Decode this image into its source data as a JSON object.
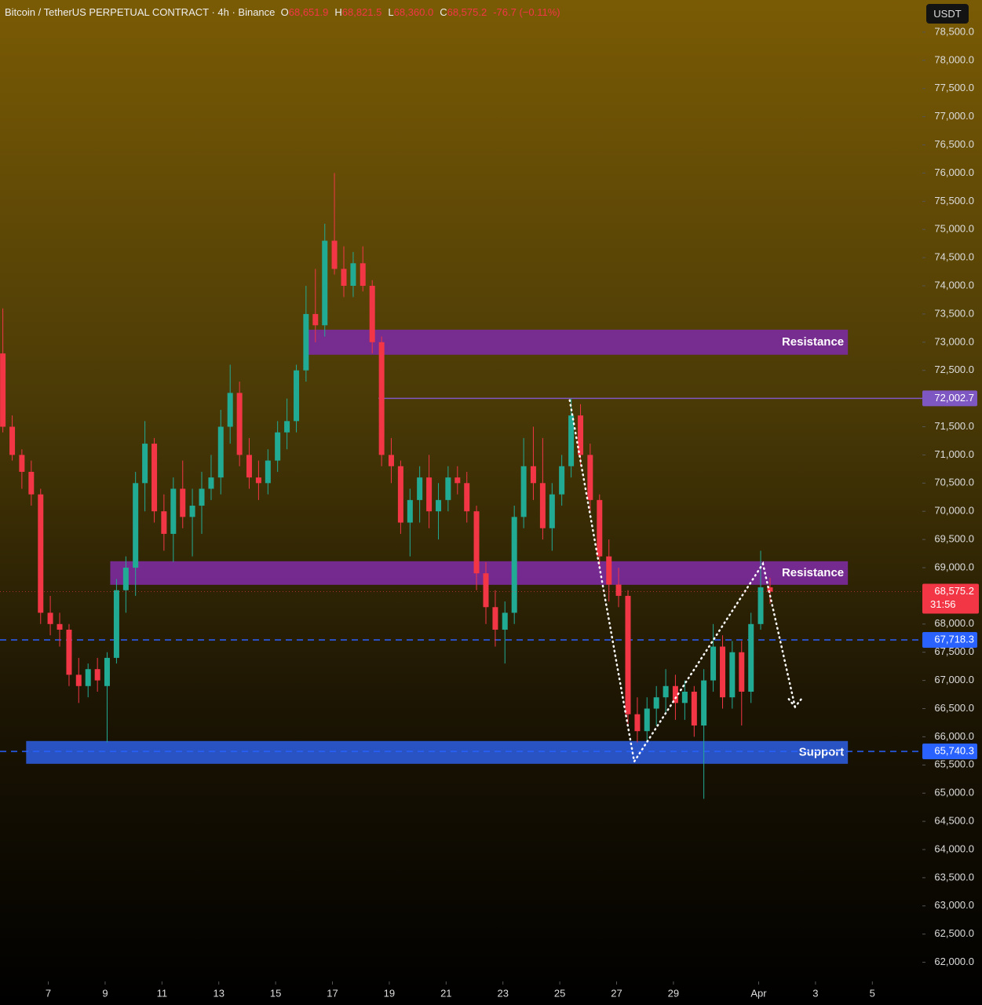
{
  "header": {
    "symbol": "Bitcoin / TetherUS PERPETUAL CONTRACT · 4h · Binance",
    "o_label": "O",
    "o": "68,651.9",
    "h_label": "H",
    "h": "68,821.5",
    "l_label": "L",
    "l": "68,360.0",
    "c_label": "C",
    "c": "68,575.2",
    "change": "-76.7 (−0.11%)",
    "currency": "USDT"
  },
  "chart_data": {
    "type": "candlestick",
    "up_color": "#22ab94",
    "down_color": "#f23645",
    "xlim": [
      5.3,
      37.76
    ],
    "ylim": [
      61660,
      79070
    ],
    "xticks": [
      7,
      9,
      11,
      13,
      15,
      17,
      19,
      21,
      23,
      25,
      27,
      29,
      {
        "value": 32,
        "label": "Apr"
      },
      {
        "value": 34,
        "label": "3"
      },
      {
        "value": 36,
        "label": "5"
      }
    ],
    "yticks": [
      {
        "value": 62000,
        "label": "62,000.0"
      },
      {
        "value": 62500,
        "label": "62,500.0"
      },
      {
        "value": 63000,
        "label": "63,000.0"
      },
      {
        "value": 63500,
        "label": "63,500.0"
      },
      {
        "value": 64000,
        "label": "64,000.0"
      },
      {
        "value": 64500,
        "label": "64,500.0"
      },
      {
        "value": 65000,
        "label": "65,000.0"
      },
      {
        "value": 65500,
        "label": "65,500.0"
      },
      {
        "value": 66000,
        "label": "66,000.0"
      },
      {
        "value": 66500,
        "label": "66,500.0"
      },
      {
        "value": 67000,
        "label": "67,000.0"
      },
      {
        "value": 67500,
        "label": "67,500.0"
      },
      {
        "value": 68000,
        "label": "68,000.0"
      },
      {
        "value": 69000,
        "label": "69,000.0"
      },
      {
        "value": 69500,
        "label": "69,500.0"
      },
      {
        "value": 70000,
        "label": "70,000.0"
      },
      {
        "value": 70500,
        "label": "70,500.0"
      },
      {
        "value": 71000,
        "label": "71,000.0"
      },
      {
        "value": 71500,
        "label": "71,500.0"
      },
      {
        "value": 72500,
        "label": "72,500.0"
      },
      {
        "value": 73000,
        "label": "73,000.0"
      },
      {
        "value": 73500,
        "label": "73,500.0"
      },
      {
        "value": 74000,
        "label": "74,000.0"
      },
      {
        "value": 74500,
        "label": "74,500.0"
      },
      {
        "value": 75000,
        "label": "75,000.0"
      },
      {
        "value": 75500,
        "label": "75,500.0"
      },
      {
        "value": 76000,
        "label": "76,000.0"
      },
      {
        "value": 76500,
        "label": "76,500.0"
      },
      {
        "value": 77000,
        "label": "77,000.0"
      },
      {
        "value": 77500,
        "label": "77,500.0"
      },
      {
        "value": 78000,
        "label": "78,000.0"
      },
      {
        "value": 78500,
        "label": "78,500.0"
      }
    ],
    "candles": [
      [
        5.4,
        72800,
        73600,
        71400,
        71500
      ],
      [
        5.73,
        71500,
        71700,
        70900,
        71000
      ],
      [
        6.07,
        71000,
        71100,
        70400,
        70700
      ],
      [
        6.4,
        70700,
        70900,
        70100,
        70300
      ],
      [
        6.73,
        70300,
        70400,
        68000,
        68200
      ],
      [
        7.07,
        68200,
        68500,
        67800,
        68000
      ],
      [
        7.4,
        68000,
        68200,
        67600,
        67900
      ],
      [
        7.73,
        67900,
        68000,
        66900,
        67100
      ],
      [
        8.07,
        67100,
        67400,
        66600,
        66900
      ],
      [
        8.4,
        66900,
        67300,
        66700,
        67200
      ],
      [
        8.73,
        67200,
        67400,
        66800,
        67000
      ],
      [
        9.07,
        66900,
        67500,
        65900,
        67400
      ],
      [
        9.4,
        67400,
        68800,
        67300,
        68600
      ],
      [
        9.73,
        68600,
        69200,
        68200,
        69000
      ],
      [
        10.07,
        69000,
        70700,
        68500,
        70500
      ],
      [
        10.4,
        70500,
        71600,
        70000,
        71200
      ],
      [
        10.73,
        71200,
        71300,
        69800,
        70000
      ],
      [
        11.07,
        70000,
        70300,
        69300,
        69600
      ],
      [
        11.4,
        69600,
        70600,
        69100,
        70400
      ],
      [
        11.73,
        70400,
        70900,
        69700,
        69900
      ],
      [
        12.07,
        69900,
        70400,
        69200,
        70100
      ],
      [
        12.4,
        70100,
        70700,
        69600,
        70400
      ],
      [
        12.73,
        70400,
        71000,
        70200,
        70600
      ],
      [
        13.07,
        70600,
        71800,
        70300,
        71500
      ],
      [
        13.4,
        71500,
        72600,
        71200,
        72100
      ],
      [
        13.73,
        72100,
        72300,
        70800,
        71000
      ],
      [
        14.07,
        71000,
        71300,
        70400,
        70600
      ],
      [
        14.4,
        70600,
        70900,
        70200,
        70500
      ],
      [
        14.73,
        70500,
        71100,
        70300,
        70900
      ],
      [
        15.07,
        70900,
        71600,
        70700,
        71400
      ],
      [
        15.4,
        71400,
        72000,
        71100,
        71600
      ],
      [
        15.73,
        71600,
        72600,
        71400,
        72500
      ],
      [
        16.07,
        72500,
        74000,
        72300,
        73500
      ],
      [
        16.4,
        73500,
        74300,
        73000,
        73300
      ],
      [
        16.73,
        73300,
        75100,
        73100,
        74800
      ],
      [
        17.07,
        74800,
        76000,
        74200,
        74300
      ],
      [
        17.4,
        74300,
        74700,
        73800,
        74000
      ],
      [
        17.73,
        74000,
        74600,
        73800,
        74400
      ],
      [
        18.07,
        74400,
        74700,
        73900,
        74000
      ],
      [
        18.4,
        74000,
        74100,
        72800,
        73000
      ],
      [
        18.73,
        73000,
        73100,
        70800,
        71000
      ],
      [
        19.07,
        71000,
        71300,
        70500,
        70800
      ],
      [
        19.4,
        70800,
        70900,
        69600,
        69800
      ],
      [
        19.73,
        69800,
        70400,
        69200,
        70200
      ],
      [
        20.07,
        70200,
        70800,
        69800,
        70600
      ],
      [
        20.4,
        70600,
        71000,
        69700,
        70000
      ],
      [
        20.73,
        70000,
        70500,
        69500,
        70200
      ],
      [
        21.07,
        70200,
        70800,
        70000,
        70600
      ],
      [
        21.4,
        70600,
        70800,
        70300,
        70500
      ],
      [
        21.73,
        70500,
        70700,
        69800,
        70000
      ],
      [
        22.07,
        70000,
        70100,
        68600,
        68900
      ],
      [
        22.4,
        68900,
        69100,
        68000,
        68300
      ],
      [
        22.73,
        68300,
        68600,
        67600,
        67900
      ],
      [
        23.07,
        67900,
        68400,
        67300,
        68200
      ],
      [
        23.4,
        68200,
        70100,
        68000,
        69900
      ],
      [
        23.73,
        69900,
        71300,
        69700,
        70800
      ],
      [
        24.07,
        70800,
        71500,
        70200,
        70500
      ],
      [
        24.4,
        70500,
        71300,
        69500,
        69700
      ],
      [
        24.73,
        69700,
        70500,
        69300,
        70300
      ],
      [
        25.07,
        70300,
        71000,
        70100,
        70800
      ],
      [
        25.4,
        70800,
        72000,
        70600,
        71700
      ],
      [
        25.73,
        71700,
        71900,
        70800,
        71000
      ],
      [
        26.07,
        71000,
        71200,
        70000,
        70200
      ],
      [
        26.4,
        70200,
        70300,
        69000,
        69200
      ],
      [
        26.73,
        69200,
        69500,
        68400,
        68700
      ],
      [
        27.07,
        68700,
        69000,
        68300,
        68500
      ],
      [
        27.4,
        68500,
        68600,
        66200,
        66400
      ],
      [
        27.73,
        66400,
        66700,
        65900,
        66100
      ],
      [
        28.07,
        66100,
        66700,
        65900,
        66500
      ],
      [
        28.4,
        66500,
        66900,
        66200,
        66700
      ],
      [
        28.73,
        66700,
        67200,
        66400,
        66900
      ],
      [
        29.07,
        66900,
        67100,
        66300,
        66600
      ],
      [
        29.4,
        66600,
        67000,
        66300,
        66800
      ],
      [
        29.73,
        66800,
        66900,
        66000,
        66200
      ],
      [
        30.07,
        66200,
        67200,
        64900,
        67000
      ],
      [
        30.4,
        67000,
        68000,
        66800,
        67600
      ],
      [
        30.73,
        67600,
        67800,
        66500,
        66700
      ],
      [
        31.07,
        66700,
        67700,
        66500,
        67500
      ],
      [
        31.4,
        67500,
        67700,
        66200,
        66800
      ],
      [
        31.73,
        66800,
        68200,
        66600,
        68000
      ],
      [
        32.07,
        68000,
        69300,
        67900,
        68651
      ],
      [
        32.4,
        68651,
        68821,
        68360,
        68575
      ]
    ],
    "zones": [
      {
        "label": "Resistance",
        "from": 16.08,
        "to": 35.14,
        "low": 72777,
        "high": 73222,
        "color": "#7b2a9b"
      },
      {
        "label": "Resistance",
        "from": 9.18,
        "to": 35.14,
        "low": 68696,
        "high": 69114,
        "color": "#7b2a9b"
      },
      {
        "label": "Support",
        "from": 6.22,
        "to": 35.14,
        "low": 65521,
        "high": 65925,
        "color": "#2b59d4"
      }
    ],
    "price_lines": [
      {
        "value": 72002.7,
        "label": "72,002.7",
        "from": 18.62,
        "color": "#7e57c2",
        "dashed": false
      },
      {
        "value": 67718.3,
        "label": "67,718.3",
        "from": 5.3,
        "color": "#2962ff",
        "dashed": true
      },
      {
        "value": 65740.3,
        "label": "65,740.3",
        "from": 5.3,
        "color": "#2962ff",
        "dashed": true
      }
    ],
    "last_price": {
      "value": 68575.2,
      "label": "68,575.2",
      "countdown": "31:56",
      "color": "#f23645"
    },
    "pattern": {
      "x": [
        25.35,
        27.62,
        32.15,
        33.28
      ],
      "values": [
        71970,
        65560,
        69070,
        66530
      ],
      "color": "#ffffff"
    }
  }
}
